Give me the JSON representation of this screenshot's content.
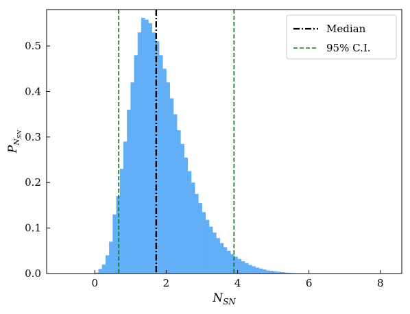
{
  "chart_data": {
    "type": "bar",
    "subtype": "histogram",
    "xlabel": "N",
    "xlabel_sub": "SN",
    "ylabel": "P",
    "ylabel_sub": "N",
    "ylabel_sub2": "SN",
    "xlim": [
      -1.35,
      8.6
    ],
    "ylim": [
      0,
      0.58
    ],
    "xticks": [
      0,
      2,
      4,
      6,
      8
    ],
    "yticks": [
      0.0,
      0.1,
      0.2,
      0.3,
      0.4,
      0.5
    ],
    "xtick_labels": [
      "0",
      "2",
      "4",
      "6",
      "8"
    ],
    "ytick_labels": [
      "0.0",
      "0.1",
      "0.2",
      "0.3",
      "0.4",
      "0.5"
    ],
    "grid": false,
    "legend_position": "top-right",
    "bar_color": "#62AEF7",
    "bin_width": 0.1,
    "bins": [
      {
        "x": 0.0,
        "y": 0.002
      },
      {
        "x": 0.1,
        "y": 0.01
      },
      {
        "x": 0.2,
        "y": 0.02
      },
      {
        "x": 0.3,
        "y": 0.04
      },
      {
        "x": 0.4,
        "y": 0.07
      },
      {
        "x": 0.5,
        "y": 0.13
      },
      {
        "x": 0.6,
        "y": 0.17
      },
      {
        "x": 0.7,
        "y": 0.23
      },
      {
        "x": 0.8,
        "y": 0.29
      },
      {
        "x": 0.9,
        "y": 0.36
      },
      {
        "x": 1.0,
        "y": 0.42
      },
      {
        "x": 1.1,
        "y": 0.48
      },
      {
        "x": 1.2,
        "y": 0.53
      },
      {
        "x": 1.3,
        "y": 0.562
      },
      {
        "x": 1.4,
        "y": 0.558
      },
      {
        "x": 1.5,
        "y": 0.55
      },
      {
        "x": 1.6,
        "y": 0.53
      },
      {
        "x": 1.7,
        "y": 0.51
      },
      {
        "x": 1.8,
        "y": 0.48
      },
      {
        "x": 1.9,
        "y": 0.45
      },
      {
        "x": 2.0,
        "y": 0.42
      },
      {
        "x": 2.1,
        "y": 0.385
      },
      {
        "x": 2.2,
        "y": 0.35
      },
      {
        "x": 2.3,
        "y": 0.315
      },
      {
        "x": 2.4,
        "y": 0.285
      },
      {
        "x": 2.5,
        "y": 0.255
      },
      {
        "x": 2.6,
        "y": 0.225
      },
      {
        "x": 2.7,
        "y": 0.2
      },
      {
        "x": 2.8,
        "y": 0.175
      },
      {
        "x": 2.9,
        "y": 0.155
      },
      {
        "x": 3.0,
        "y": 0.135
      },
      {
        "x": 3.1,
        "y": 0.118
      },
      {
        "x": 3.2,
        "y": 0.103
      },
      {
        "x": 3.3,
        "y": 0.09
      },
      {
        "x": 3.4,
        "y": 0.078
      },
      {
        "x": 3.5,
        "y": 0.067
      },
      {
        "x": 3.6,
        "y": 0.058
      },
      {
        "x": 3.7,
        "y": 0.05
      },
      {
        "x": 3.8,
        "y": 0.043
      },
      {
        "x": 3.9,
        "y": 0.037
      },
      {
        "x": 4.0,
        "y": 0.032
      },
      {
        "x": 4.1,
        "y": 0.027
      },
      {
        "x": 4.2,
        "y": 0.023
      },
      {
        "x": 4.3,
        "y": 0.019
      },
      {
        "x": 4.4,
        "y": 0.016
      },
      {
        "x": 4.5,
        "y": 0.013
      },
      {
        "x": 4.6,
        "y": 0.011
      },
      {
        "x": 4.7,
        "y": 0.009
      },
      {
        "x": 4.8,
        "y": 0.007
      },
      {
        "x": 4.9,
        "y": 0.006
      },
      {
        "x": 5.0,
        "y": 0.005
      },
      {
        "x": 5.1,
        "y": 0.004
      },
      {
        "x": 5.2,
        "y": 0.003
      },
      {
        "x": 5.3,
        "y": 0.002
      },
      {
        "x": 5.4,
        "y": 0.0015
      },
      {
        "x": 5.5,
        "y": 0.001
      }
    ],
    "lines": [
      {
        "name": "Median",
        "x": 1.72,
        "color": "#000000",
        "style": "dashdot"
      },
      {
        "name": "95% C.I.",
        "x": 0.67,
        "color": "#008000",
        "style": "dashed"
      },
      {
        "name": "95% C.I.",
        "x": 3.9,
        "color": "#008000",
        "style": "dashed"
      }
    ],
    "legend": [
      {
        "label": "Median",
        "color": "#000000",
        "style": "dashdot"
      },
      {
        "label": "95% C.I.",
        "color": "#008000",
        "style": "dashed"
      }
    ]
  }
}
